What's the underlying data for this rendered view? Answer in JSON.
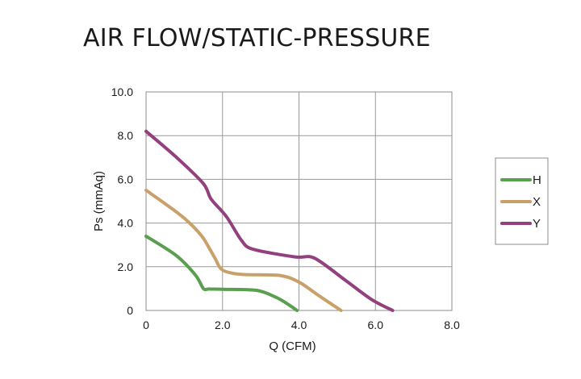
{
  "chart_data": {
    "type": "line",
    "title": "AIR FLOW/STATIC-PRESSURE",
    "xlabel": "Q (CFM)",
    "ylabel": "Ps (mmAq)",
    "xlim": [
      0,
      8
    ],
    "ylim": [
      0,
      10
    ],
    "x_ticks": [
      "0",
      "2.0",
      "4.0",
      "6.0",
      "8.0"
    ],
    "y_ticks": [
      "0",
      "2.0",
      "4.0",
      "6.0",
      "8.0",
      "10.0"
    ],
    "grid": true,
    "legend_position": "right",
    "series": [
      {
        "name": "H",
        "color": "#5a9e4f",
        "x": [
          0,
          0.8,
          1.3,
          1.5,
          1.65,
          2.0,
          2.9,
          3.4,
          3.7,
          3.95
        ],
        "y": [
          3.4,
          2.5,
          1.6,
          1.0,
          0.98,
          0.97,
          0.92,
          0.6,
          0.3,
          0.0
        ]
      },
      {
        "name": "X",
        "color": "#c9a06a",
        "x": [
          0,
          0.8,
          1.2,
          1.5,
          1.8,
          2.0,
          2.5,
          3.5,
          4.0,
          4.5,
          5.1
        ],
        "y": [
          5.5,
          4.5,
          3.9,
          3.3,
          2.4,
          1.85,
          1.65,
          1.6,
          1.3,
          0.7,
          0.0
        ]
      },
      {
        "name": "Y",
        "color": "#92407e",
        "x": [
          0,
          0.8,
          1.5,
          1.7,
          2.1,
          2.5,
          2.8,
          3.9,
          4.4,
          5.2,
          5.9,
          6.45
        ],
        "y": [
          8.2,
          7.0,
          5.8,
          5.1,
          4.3,
          3.2,
          2.8,
          2.45,
          2.4,
          1.4,
          0.5,
          0.0
        ]
      }
    ]
  }
}
